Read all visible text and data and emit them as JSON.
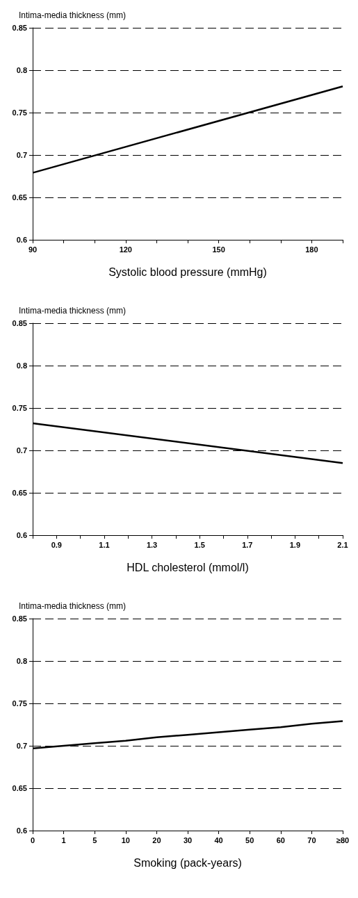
{
  "chart_data": [
    {
      "type": "line",
      "xlabel": "Systolic blood pressure (mmHg)",
      "ylabel": "Intima-media thickness (mm)",
      "x": [
        90,
        190
      ],
      "series": [
        {
          "color": "#000000",
          "values": [
            0.679,
            0.781
          ]
        }
      ],
      "xlim": [
        90,
        190
      ],
      "xticks": [
        90,
        {
          "value": 100,
          "label": null
        },
        {
          "value": 110,
          "label": null
        },
        120,
        {
          "value": 130,
          "label": null
        },
        {
          "value": 140,
          "label": null
        },
        150,
        {
          "value": 160,
          "label": null
        },
        {
          "value": 170,
          "label": null
        },
        180,
        {
          "value": 190,
          "label": null
        }
      ],
      "ylim": [
        0.6,
        0.85
      ],
      "yticks": [
        0.6,
        0.65,
        0.7,
        0.75,
        0.8,
        0.85
      ],
      "grid": "y"
    },
    {
      "type": "line",
      "xlabel": "HDL cholesterol (mmol/l)",
      "ylabel": "Intima-media thickness (mm)",
      "x": [
        0.8,
        2.1
      ],
      "series": [
        {
          "color": "#000000",
          "values": [
            0.732,
            0.685
          ]
        }
      ],
      "xlim": [
        0.8,
        2.1
      ],
      "xticks": [
        {
          "value": 0.8,
          "label": null
        },
        0.9,
        {
          "value": 1,
          "label": null
        },
        1.1,
        {
          "value": 1.2,
          "label": null
        },
        1.3,
        {
          "value": 1.4,
          "label": null
        },
        1.5,
        {
          "value": 1.6,
          "label": null
        },
        1.7,
        {
          "value": 1.8,
          "label": null
        },
        1.9,
        {
          "value": 2,
          "label": null
        },
        2.1
      ],
      "ylim": [
        0.6,
        0.85
      ],
      "yticks": [
        0.6,
        0.65,
        0.7,
        0.75,
        0.8,
        0.85
      ],
      "grid": "y"
    },
    {
      "type": "line",
      "xlabel": "Smoking (pack-years)",
      "ylabel": "Intima-media thickness (mm)",
      "categories": [
        "0",
        "1",
        "5",
        "10",
        "20",
        "30",
        "40",
        "50",
        "60",
        "70",
        "≥80"
      ],
      "series": [
        {
          "color": "#000000",
          "values": [
            0.697,
            0.7,
            0.703,
            0.706,
            0.71,
            0.713,
            0.716,
            0.719,
            0.722,
            0.726,
            0.729
          ]
        }
      ],
      "ylim": [
        0.6,
        0.85
      ],
      "yticks": [
        0.6,
        0.65,
        0.7,
        0.75,
        0.8,
        0.85
      ],
      "grid": "y"
    }
  ]
}
